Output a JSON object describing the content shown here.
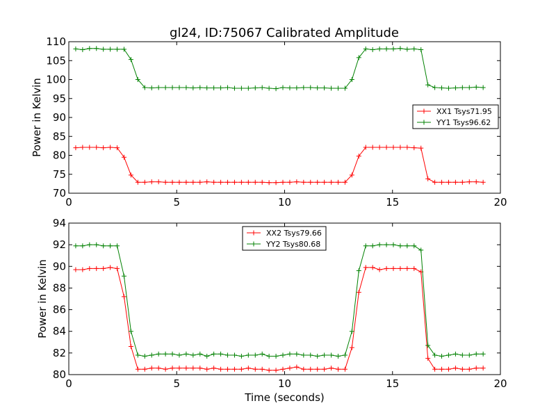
{
  "chart_data": [
    {
      "type": "line",
      "title": "gl24, ID:75067 Calibrated Amplitude",
      "xlabel": "",
      "ylabel": "Power in Kelvin",
      "xlim": [
        0,
        20
      ],
      "ylim": [
        70,
        110
      ],
      "xticks": [
        "0",
        "5",
        "10",
        "15",
        "20"
      ],
      "yticks": [
        "70",
        "75",
        "80",
        "85",
        "90",
        "95",
        "100",
        "105",
        "110"
      ],
      "legend_position": "right",
      "grid": false,
      "x": [
        0.32,
        0.64,
        0.96,
        1.28,
        1.6,
        1.92,
        2.24,
        2.56,
        2.88,
        3.2,
        3.52,
        3.84,
        4.16,
        4.48,
        4.8,
        5.12,
        5.44,
        5.76,
        6.08,
        6.4,
        6.72,
        7.04,
        7.36,
        7.68,
        8.0,
        8.32,
        8.64,
        8.96,
        9.28,
        9.6,
        9.92,
        10.24,
        10.56,
        10.88,
        11.2,
        11.52,
        11.84,
        12.16,
        12.48,
        12.8,
        13.12,
        13.44,
        13.76,
        14.08,
        14.4,
        14.72,
        15.04,
        15.36,
        15.68,
        16.0,
        16.32,
        16.64,
        16.96,
        17.28,
        17.6,
        17.92,
        18.24,
        18.56,
        18.88,
        19.2
      ],
      "series": [
        {
          "name": "XX1 Tsys71.95",
          "color": "#ff0000",
          "values": [
            82.0,
            82.1,
            82.1,
            82.1,
            82.0,
            82.1,
            82.0,
            79.5,
            74.8,
            72.9,
            72.9,
            73.0,
            73.0,
            72.9,
            72.9,
            72.9,
            72.9,
            72.9,
            72.9,
            73.0,
            72.9,
            72.9,
            72.9,
            72.9,
            72.9,
            72.9,
            72.9,
            72.9,
            72.8,
            72.8,
            72.9,
            72.9,
            73.0,
            72.9,
            72.9,
            72.9,
            72.9,
            72.9,
            72.9,
            72.9,
            74.8,
            79.8,
            82.1,
            82.1,
            82.1,
            82.1,
            82.1,
            82.1,
            82.1,
            82.0,
            81.9,
            73.8,
            72.9,
            72.9,
            72.9,
            72.9,
            72.9,
            73.0,
            73.0,
            72.9
          ]
        },
        {
          "name": "YY1 Tsys96.62",
          "color": "#008000",
          "values": [
            108.1,
            107.9,
            108.2,
            108.2,
            108.0,
            108.0,
            108.0,
            108.0,
            105.3,
            100.0,
            97.9,
            97.8,
            97.9,
            97.9,
            97.9,
            97.9,
            97.9,
            97.8,
            97.9,
            97.8,
            97.8,
            97.8,
            97.9,
            97.7,
            97.7,
            97.7,
            97.8,
            97.9,
            97.7,
            97.6,
            97.9,
            97.8,
            97.8,
            97.9,
            97.9,
            97.8,
            97.8,
            97.7,
            97.7,
            97.7,
            100.0,
            105.8,
            108.1,
            107.9,
            108.1,
            108.1,
            108.1,
            108.2,
            108.0,
            108.1,
            107.9,
            98.6,
            97.9,
            97.8,
            97.7,
            97.8,
            97.9,
            97.9,
            98.0,
            97.9
          ]
        }
      ]
    },
    {
      "type": "line",
      "title": "",
      "xlabel": "Time (seconds)",
      "ylabel": "Power in Kelvin",
      "xlim": [
        0,
        20
      ],
      "ylim": [
        80,
        94
      ],
      "xticks": [
        "0",
        "5",
        "10",
        "15",
        "20"
      ],
      "yticks": [
        "80",
        "82",
        "84",
        "86",
        "88",
        "90",
        "92",
        "94"
      ],
      "legend_position": "top-center",
      "grid": false,
      "x": [
        0.32,
        0.64,
        0.96,
        1.28,
        1.6,
        1.92,
        2.24,
        2.56,
        2.88,
        3.2,
        3.52,
        3.84,
        4.16,
        4.48,
        4.8,
        5.12,
        5.44,
        5.76,
        6.08,
        6.4,
        6.72,
        7.04,
        7.36,
        7.68,
        8.0,
        8.32,
        8.64,
        8.96,
        9.28,
        9.6,
        9.92,
        10.24,
        10.56,
        10.88,
        11.2,
        11.52,
        11.84,
        12.16,
        12.48,
        12.8,
        13.12,
        13.44,
        13.76,
        14.08,
        14.4,
        14.72,
        15.04,
        15.36,
        15.68,
        16.0,
        16.32,
        16.64,
        16.96,
        17.28,
        17.6,
        17.92,
        18.24,
        18.56,
        18.88,
        19.2
      ],
      "series": [
        {
          "name": "XX2 Tsys79.66",
          "color": "#ff0000",
          "values": [
            89.7,
            89.7,
            89.8,
            89.8,
            89.8,
            89.9,
            89.8,
            87.2,
            82.6,
            80.5,
            80.5,
            80.6,
            80.6,
            80.5,
            80.6,
            80.6,
            80.6,
            80.6,
            80.6,
            80.5,
            80.6,
            80.5,
            80.5,
            80.5,
            80.5,
            80.6,
            80.5,
            80.5,
            80.4,
            80.4,
            80.5,
            80.6,
            80.7,
            80.5,
            80.5,
            80.5,
            80.5,
            80.6,
            80.5,
            80.5,
            82.5,
            87.6,
            89.9,
            89.9,
            89.7,
            89.8,
            89.8,
            89.8,
            89.8,
            89.8,
            89.5,
            81.5,
            80.5,
            80.5,
            80.5,
            80.6,
            80.5,
            80.5,
            80.6,
            80.6
          ]
        },
        {
          "name": "YY2 Tsys80.68",
          "color": "#008000",
          "values": [
            91.9,
            91.9,
            92.0,
            92.0,
            91.9,
            91.9,
            91.9,
            89.1,
            84.0,
            81.8,
            81.7,
            81.8,
            81.9,
            81.9,
            81.9,
            81.8,
            81.9,
            81.8,
            81.9,
            81.7,
            81.9,
            81.9,
            81.8,
            81.8,
            81.7,
            81.8,
            81.8,
            81.9,
            81.7,
            81.7,
            81.8,
            81.9,
            81.9,
            81.8,
            81.8,
            81.7,
            81.8,
            81.8,
            81.7,
            81.8,
            84.0,
            89.6,
            91.9,
            91.9,
            92.0,
            92.0,
            92.0,
            91.9,
            91.9,
            91.9,
            91.5,
            82.7,
            81.8,
            81.7,
            81.8,
            81.9,
            81.8,
            81.8,
            81.9,
            81.9
          ]
        }
      ]
    }
  ]
}
